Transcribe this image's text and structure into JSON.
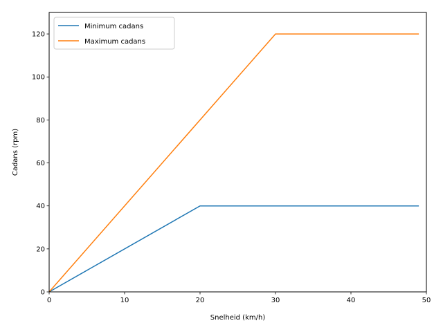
{
  "chart_data": {
    "type": "line",
    "xlabel": "Snelheid (km/h)",
    "ylabel": "Cadans (rpm)",
    "xlim": [
      0,
      50
    ],
    "ylim": [
      0,
      130
    ],
    "xticks": [
      0,
      10,
      20,
      30,
      40,
      50
    ],
    "yticks": [
      0,
      20,
      40,
      60,
      80,
      100,
      120
    ],
    "grid": false,
    "legend_position": "top-left",
    "series": [
      {
        "name": "Minimum cadans",
        "color": "#1f77b4",
        "x": [
          0,
          20,
          49
        ],
        "y": [
          0,
          40,
          40
        ]
      },
      {
        "name": "Maximum cadans",
        "color": "#ff7f0e",
        "x": [
          0,
          30,
          49
        ],
        "y": [
          0,
          120,
          120
        ]
      }
    ]
  }
}
